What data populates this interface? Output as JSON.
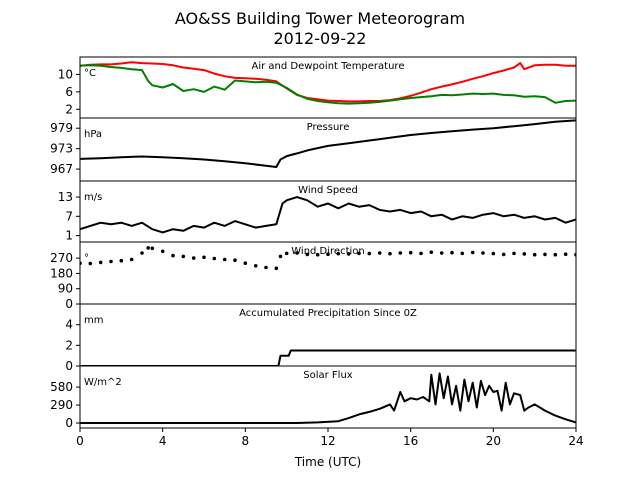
{
  "figure": {
    "title_line1": "AO&SS Building Tower Meteorogram",
    "title_line2": "2012-09-22",
    "xlabel": "Time (UTC)"
  },
  "chart_data": [
    {
      "id": "temp",
      "type": "line",
      "title": "Air and Dewpoint Temperature",
      "unit": "°C",
      "xlim": [
        0,
        24
      ],
      "ylim": [
        0,
        14
      ],
      "yticks": [
        2,
        6,
        10
      ],
      "series": [
        {
          "color": "#ff0000",
          "x": [
            0,
            0.5,
            1,
            1.5,
            2,
            2.5,
            3,
            3.5,
            4,
            4.5,
            5,
            5.5,
            6,
            6.5,
            7,
            7.5,
            8,
            8.5,
            9,
            9.5,
            10,
            10.5,
            11,
            11.5,
            12,
            12.5,
            13,
            13.5,
            14,
            14.5,
            15,
            15.5,
            16,
            16.5,
            17,
            17.5,
            18,
            18.5,
            19,
            19.5,
            20,
            20.5,
            21,
            21.3,
            21.5,
            22,
            22.5,
            23,
            23.5,
            24
          ],
          "values": [
            12,
            12.2,
            12.3,
            12.3,
            12.5,
            12.8,
            12.6,
            12.5,
            12.4,
            12.1,
            11.6,
            11.3,
            11.0,
            10.2,
            9.6,
            9.2,
            9.1,
            9.0,
            8.8,
            8.4,
            6.8,
            5.3,
            4.6,
            4.3,
            4.0,
            3.9,
            3.8,
            3.8,
            3.9,
            3.9,
            4.1,
            4.5,
            5.1,
            5.8,
            6.6,
            7.2,
            7.7,
            8.3,
            9.0,
            9.6,
            10.3,
            10.9,
            11.6,
            12.6,
            11.2,
            12.1,
            12.2,
            12.2,
            12.0,
            12.0
          ]
        },
        {
          "color": "#008000",
          "x": [
            0,
            0.5,
            1,
            1.5,
            2,
            2.5,
            3,
            3.3,
            3.5,
            4,
            4.5,
            5,
            5.5,
            6,
            6.5,
            7,
            7.5,
            8,
            8.5,
            9,
            9.5,
            10,
            10.5,
            11,
            11.5,
            12,
            12.5,
            13,
            13.5,
            14,
            14.5,
            15,
            15.5,
            16,
            16.5,
            17,
            17.5,
            18,
            18.5,
            19,
            19.5,
            20,
            20.5,
            21,
            21.5,
            22,
            22.5,
            23,
            23.5,
            24
          ],
          "values": [
            12,
            12.1,
            12.0,
            11.7,
            11.5,
            11.2,
            11.0,
            8.5,
            7.5,
            7.0,
            7.8,
            6.2,
            6.6,
            6.0,
            7.2,
            6.5,
            8.6,
            8.4,
            8.2,
            8.3,
            8.1,
            6.9,
            5.4,
            4.4,
            3.9,
            3.6,
            3.4,
            3.3,
            3.4,
            3.5,
            3.7,
            4.0,
            4.3,
            4.6,
            4.8,
            5.0,
            5.3,
            5.2,
            5.4,
            5.6,
            5.5,
            5.6,
            5.3,
            5.2,
            4.9,
            5.0,
            4.8,
            3.5,
            3.9,
            4.0
          ]
        }
      ]
    },
    {
      "id": "pressure",
      "type": "line",
      "title": "Pressure",
      "unit": "hPa",
      "xlim": [
        0,
        24
      ],
      "ylim": [
        963.5,
        982
      ],
      "yticks": [
        967,
        973,
        979
      ],
      "series": [
        {
          "color": "#000000",
          "x": [
            0,
            1,
            2,
            3,
            4,
            5,
            6,
            7,
            8,
            9,
            9.5,
            9.7,
            10,
            10.5,
            11,
            12,
            13,
            14,
            15,
            16,
            17,
            18,
            19,
            20,
            21,
            22,
            23,
            24
          ],
          "values": [
            970.0,
            970.2,
            970.5,
            970.7,
            970.5,
            970.2,
            969.8,
            969.3,
            968.7,
            968.0,
            967.6,
            969.8,
            970.8,
            971.6,
            972.5,
            973.8,
            974.6,
            975.4,
            976.2,
            977.0,
            977.6,
            978.1,
            978.6,
            979.0,
            979.6,
            980.2,
            980.9,
            981.3
          ]
        }
      ]
    },
    {
      "id": "wind_speed",
      "type": "line",
      "title": "Wind Speed",
      "unit": "m/s",
      "xlim": [
        0,
        24
      ],
      "ylim": [
        -1,
        18
      ],
      "yticks": [
        1,
        7,
        13
      ],
      "series": [
        {
          "color": "#000000",
          "x": [
            0,
            0.5,
            1,
            1.5,
            2,
            2.5,
            3,
            3.5,
            4,
            4.5,
            5,
            5.5,
            6,
            6.5,
            7,
            7.5,
            8,
            8.5,
            9,
            9.5,
            9.8,
            10,
            10.5,
            11,
            11.5,
            12,
            12.5,
            13,
            13.5,
            14,
            14.5,
            15,
            15.5,
            16,
            16.5,
            17,
            17.5,
            18,
            18.5,
            19,
            19.5,
            20,
            20.5,
            21,
            21.5,
            22,
            22.5,
            23,
            23.5,
            24
          ],
          "values": [
            3,
            4,
            5,
            4.5,
            5,
            4,
            5,
            3,
            2,
            3,
            2.5,
            4,
            3.5,
            5,
            4,
            5.5,
            4.5,
            3.5,
            4,
            4.5,
            11,
            12,
            13,
            12,
            10,
            11,
            9.5,
            11,
            10,
            10.5,
            9,
            8.5,
            9,
            8,
            8.5,
            7,
            7.5,
            6,
            7,
            6.5,
            7.5,
            8,
            7,
            7.5,
            6.5,
            7,
            6,
            6.5,
            5,
            6
          ]
        }
      ]
    },
    {
      "id": "wind_direction",
      "type": "scatter",
      "title": "Wind Direction",
      "unit": "°",
      "xlim": [
        0,
        24
      ],
      "ylim": [
        0,
        365
      ],
      "yticks": [
        0,
        90,
        180,
        270
      ],
      "series": [
        {
          "color": "#000000",
          "x": [
            0,
            0.5,
            1,
            1.5,
            2,
            2.5,
            3,
            3.3,
            3.5,
            4,
            4.5,
            5,
            5.5,
            6,
            6.5,
            7,
            7.5,
            8,
            8.5,
            9,
            9.5,
            9.7,
            10,
            10.5,
            11,
            11.5,
            12,
            12.5,
            13,
            13.5,
            14,
            14.5,
            15,
            15.5,
            16,
            16.5,
            17,
            17.5,
            18,
            18.5,
            19,
            19.5,
            20,
            20.5,
            21,
            21.5,
            22,
            22.5,
            23,
            23.5,
            24
          ],
          "values": [
            240,
            238,
            245,
            250,
            255,
            262,
            300,
            330,
            328,
            310,
            285,
            280,
            270,
            275,
            268,
            262,
            258,
            240,
            225,
            215,
            210,
            280,
            298,
            300,
            292,
            290,
            293,
            296,
            295,
            298,
            297,
            300,
            296,
            300,
            302,
            298,
            305,
            300,
            302,
            298,
            303,
            300,
            297,
            292,
            298,
            295,
            290,
            292,
            290,
            293,
            290
          ]
        }
      ]
    },
    {
      "id": "precip",
      "type": "line",
      "title": "Accumulated Precipitation Since 0Z",
      "unit": "mm",
      "xlim": [
        0,
        24
      ],
      "ylim": [
        0,
        6
      ],
      "yticks": [
        0,
        2,
        4
      ],
      "series": [
        {
          "color": "#000000",
          "x": [
            0,
            9.6,
            9.7,
            10.1,
            10.2,
            10.5,
            24
          ],
          "values": [
            0,
            0,
            1.0,
            1.0,
            1.5,
            1.5,
            1.5
          ]
        }
      ]
    },
    {
      "id": "solar",
      "type": "line",
      "title": "Solar Flux",
      "unit": "W/m^2",
      "xlim": [
        0,
        24
      ],
      "ylim": [
        -80,
        920
      ],
      "yticks": [
        0,
        290,
        580
      ],
      "series": [
        {
          "color": "#000000",
          "x": [
            0,
            10.5,
            11.5,
            12.5,
            13,
            13.5,
            14,
            14.5,
            15,
            15.2,
            15.5,
            15.7,
            16,
            16.3,
            16.6,
            16.9,
            17,
            17.2,
            17.4,
            17.6,
            17.8,
            18,
            18.2,
            18.4,
            18.6,
            18.8,
            19,
            19.2,
            19.4,
            19.6,
            19.8,
            20,
            20.2,
            20.4,
            20.6,
            20.8,
            21,
            21.3,
            21.5,
            21.7,
            22,
            22.5,
            23,
            23.5,
            24
          ],
          "values": [
            0,
            0,
            10,
            30,
            80,
            140,
            180,
            230,
            300,
            200,
            500,
            350,
            400,
            380,
            420,
            350,
            780,
            300,
            800,
            400,
            750,
            300,
            600,
            200,
            700,
            350,
            650,
            250,
            680,
            450,
            600,
            500,
            520,
            200,
            650,
            300,
            480,
            450,
            200,
            250,
            300,
            200,
            120,
            60,
            10
          ]
        }
      ]
    }
  ],
  "x_axis": {
    "ticks": [
      0,
      4,
      8,
      12,
      16,
      20,
      24
    ]
  }
}
